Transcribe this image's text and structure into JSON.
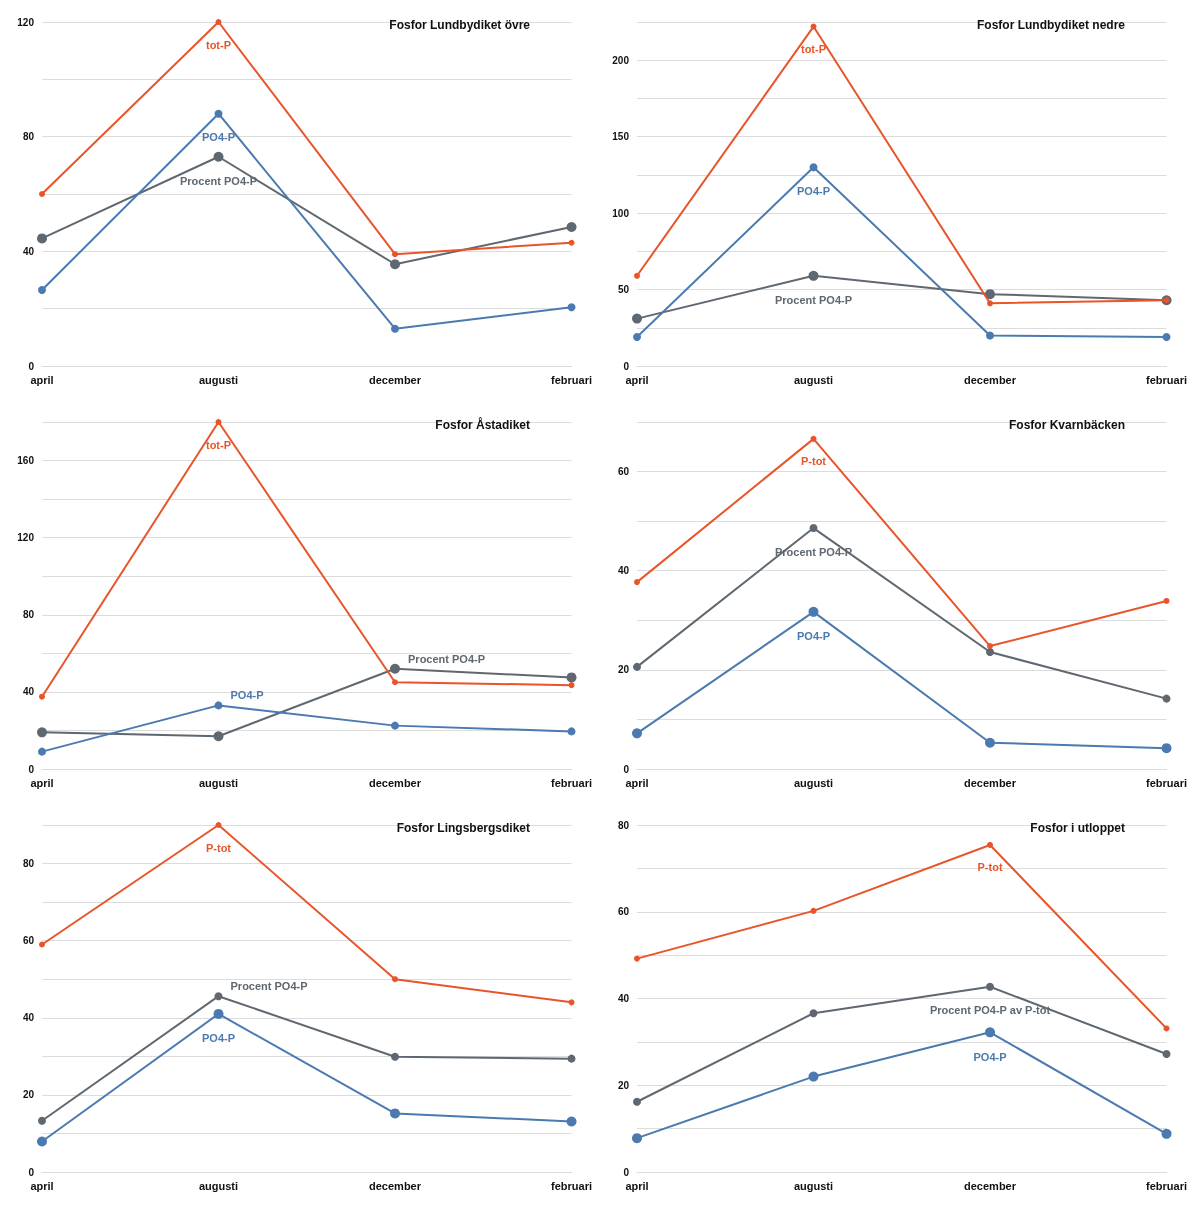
{
  "chart_data": [
    {
      "type": "line",
      "title": "Fosfor Lundbydiket övre",
      "categories": [
        "april",
        "augusti",
        "december",
        "februari"
      ],
      "ylim": [
        0,
        120
      ],
      "yticks": [
        0,
        {
          "value": 20,
          "label": null
        },
        40,
        {
          "value": 60,
          "label": null
        },
        80,
        {
          "value": 100,
          "label": null
        },
        120
      ],
      "grid": "y",
      "legend": false,
      "marker": "circle",
      "series": [
        {
          "name": "tot-P",
          "color": "#e8552a",
          "values": [
            60,
            120,
            39,
            43
          ]
        },
        {
          "name": "PO4-P",
          "color": "#4a7ab0",
          "values": [
            26.5,
            88,
            13,
            20.5
          ]
        },
        {
          "name": "Procent PO4-P",
          "color": "#5f6870",
          "values": [
            44.5,
            73,
            35.5,
            48.5
          ]
        }
      ]
    },
    {
      "type": "line",
      "title": "Fosfor Lundbydiket nedre",
      "categories": [
        "april",
        "augusti",
        "december",
        "februari"
      ],
      "ylim": [
        0,
        225
      ],
      "yticks": [
        0,
        {
          "value": 25,
          "label": null
        },
        50,
        {
          "value": 75,
          "label": null
        },
        100,
        {
          "value": 125,
          "label": null
        },
        150,
        {
          "value": 175,
          "label": null
        },
        200,
        {
          "value": 225,
          "label": null
        }
      ],
      "grid": "y",
      "legend": false,
      "marker": "circle",
      "series": [
        {
          "name": "tot-P",
          "color": "#e8552a",
          "values": [
            59,
            222,
            41,
            43
          ]
        },
        {
          "name": "PO4-P",
          "color": "#4a7ab0",
          "values": [
            19,
            130,
            20,
            19
          ]
        },
        {
          "name": "Procent PO4-P",
          "color": "#5f6870",
          "values": [
            31,
            59,
            47,
            43
          ]
        }
      ]
    },
    {
      "type": "line",
      "title": "Fosfor Åstadiket",
      "categories": [
        "april",
        "augusti",
        "december",
        "februari"
      ],
      "ylim": [
        0,
        180
      ],
      "yticks": [
        0,
        {
          "value": 20,
          "label": null
        },
        40,
        {
          "value": 60,
          "label": null
        },
        80,
        {
          "value": 100,
          "label": null
        },
        120,
        {
          "value": 140,
          "label": null
        },
        160,
        {
          "value": 180,
          "label": null
        }
      ],
      "grid": "y",
      "legend": false,
      "marker": "circle",
      "series": [
        {
          "name": "tot-P",
          "color": "#e8552a",
          "values": [
            37.5,
            180,
            45,
            43.5
          ]
        },
        {
          "name": "PO4-P",
          "color": "#4a7ab0",
          "values": [
            9,
            33,
            22.5,
            19.5
          ]
        },
        {
          "name": "Procent PO4-P",
          "color": "#5f6870",
          "values": [
            19,
            17,
            52,
            47.5
          ]
        }
      ]
    },
    {
      "type": "line",
      "title": "Fosfor Kvarnbäcken",
      "categories": [
        "april",
        "augusti",
        "december",
        "februari"
      ],
      "ylim": [
        0,
        70
      ],
      "yticks": [
        0,
        {
          "value": 10,
          "label": null
        },
        20,
        {
          "value": 30,
          "label": null
        },
        40,
        {
          "value": 50,
          "label": null
        },
        60,
        {
          "value": 70,
          "label": null
        }
      ],
      "grid": "y",
      "legend": false,
      "marker": "circle",
      "series": [
        {
          "name": "P-tot",
          "color": "#e8552a",
          "values": [
            37.7,
            66.6,
            24.8,
            33.9
          ]
        },
        {
          "name": "Procent PO4-P",
          "color": "#5f6870",
          "values": [
            20.6,
            48.6,
            23.6,
            14.2
          ]
        },
        {
          "name": "PO4-P",
          "color": "#4a7ab0",
          "values": [
            7.2,
            31.7,
            5.3,
            4.2
          ]
        }
      ]
    },
    {
      "type": "line",
      "title": "Fosfor Lingsbergsdiket",
      "categories": [
        "april",
        "augusti",
        "december",
        "februari"
      ],
      "ylim": [
        0,
        90
      ],
      "yticks": [
        0,
        {
          "value": 10,
          "label": null
        },
        20,
        {
          "value": 30,
          "label": null
        },
        40,
        {
          "value": 50,
          "label": null
        },
        60,
        {
          "value": 70,
          "label": null
        },
        80,
        {
          "value": 90,
          "label": null
        }
      ],
      "grid": "y",
      "legend": false,
      "marker": "circle",
      "series": [
        {
          "name": "P-tot",
          "color": "#e8552a",
          "values": [
            59,
            90,
            50,
            44
          ]
        },
        {
          "name": "Procent PO4-P",
          "color": "#5f6870",
          "values": [
            13.3,
            45.6,
            29.9,
            29.4
          ]
        },
        {
          "name": "PO4-P",
          "color": "#4a7ab0",
          "values": [
            7.9,
            41,
            15.2,
            13.1
          ]
        }
      ]
    },
    {
      "type": "line",
      "title": "Fosfor i utloppet",
      "categories": [
        "april",
        "augusti",
        "december",
        "februari"
      ],
      "ylim": [
        0,
        80
      ],
      "yticks": [
        0,
        {
          "value": 10,
          "label": null
        },
        20,
        {
          "value": 30,
          "label": null
        },
        40,
        {
          "value": 50,
          "label": null
        },
        60,
        {
          "value": 70,
          "label": null
        },
        80
      ],
      "grid": "y",
      "legend": false,
      "marker": "circle",
      "series": [
        {
          "name": "P-tot",
          "color": "#e8552a",
          "values": [
            49.2,
            60.2,
            75.4,
            33.1
          ]
        },
        {
          "name": "Procent PO4-P av P-tot",
          "color": "#5f6870",
          "values": [
            16.2,
            36.6,
            42.7,
            27.2
          ]
        },
        {
          "name": "PO4-P",
          "color": "#4a7ab0",
          "values": [
            7.8,
            22,
            32.2,
            8.8
          ]
        }
      ]
    }
  ]
}
